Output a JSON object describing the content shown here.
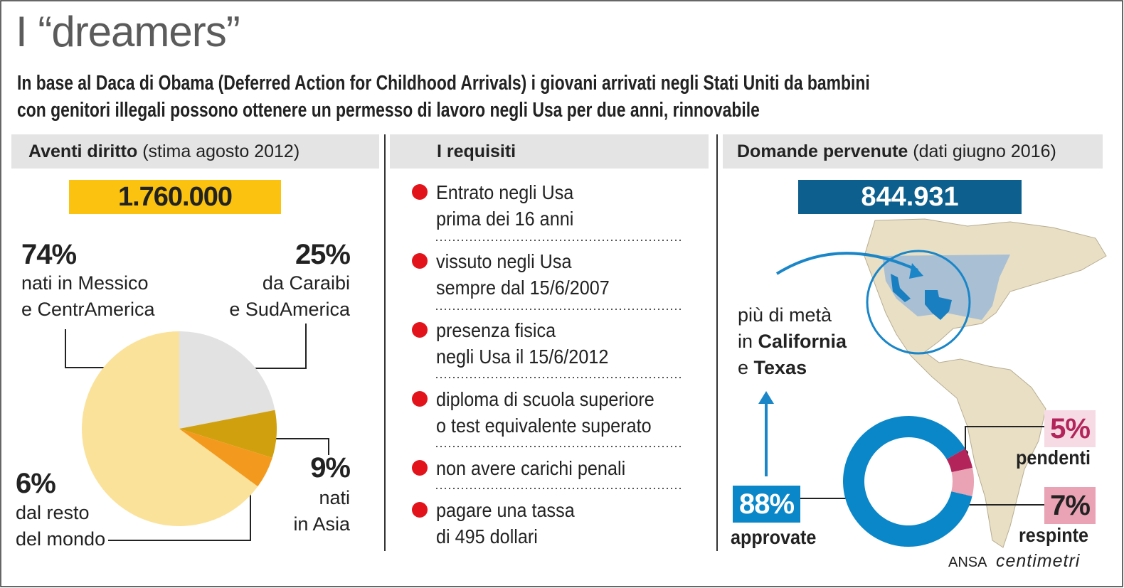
{
  "title": "I “dreamers”",
  "subtitle": "In base al Daca di Obama (Deferred Action for Childhood Arrivals) i giovani arrivati negli Stati Uniti da bambini\ncon genitori illegali possono ottenere un permesso di lavoro negli Usa per due anni, rinnovabile",
  "sections": [
    {
      "heading": "Aventi diritto",
      "note": "(stima agosto 2012)"
    },
    {
      "heading": "I requisiti"
    },
    {
      "heading": "Domande pervenute",
      "note": "(dati giugno 2016)"
    }
  ],
  "requirements": [
    "Entrato negli Usa\nprima dei 16 anni",
    "vissuto negli Usa\nsempre dal 15/6/2007",
    "presenza fisica\nnegli Usa il 15/6/2012",
    "diploma di scuola superiore\no test equivalente superato",
    "non avere carichi penali",
    "pagare una tassa\ndi 495 dollari"
  ],
  "map_note": [
    [
      "più di metà"
    ],
    [
      "in ",
      "California"
    ],
    [
      "e ",
      "Texas"
    ]
  ],
  "credit": {
    "agency": "ANSA",
    "brand": "centimetri"
  },
  "chart_data": [
    {
      "type": "pie",
      "total": {
        "value": 1760000,
        "label": "1.760.000"
      },
      "categories": [
        "nati in Messico\ne CentrAmerica",
        "da Caraibi\ne SudAmerica",
        "nati\nin Asia",
        "dal resto\ndel mondo"
      ],
      "values": [
        74,
        25,
        9,
        6
      ],
      "value_labels": [
        "74%",
        "25%",
        "9%",
        "6%"
      ],
      "colors": [
        "#fbe29a",
        "#e2e2e2",
        "#d0a00e",
        "#f39a1e"
      ]
    },
    {
      "type": "donut",
      "total": {
        "value": 844931,
        "label": "844.931"
      },
      "categories": [
        "approvate",
        "pendenti",
        "respinte"
      ],
      "values": [
        88,
        5,
        7
      ],
      "value_labels": [
        "88%",
        "5%",
        "7%"
      ],
      "colors": [
        "#0a87c9",
        "#b3255a",
        "#e9a3b4"
      ]
    }
  ]
}
